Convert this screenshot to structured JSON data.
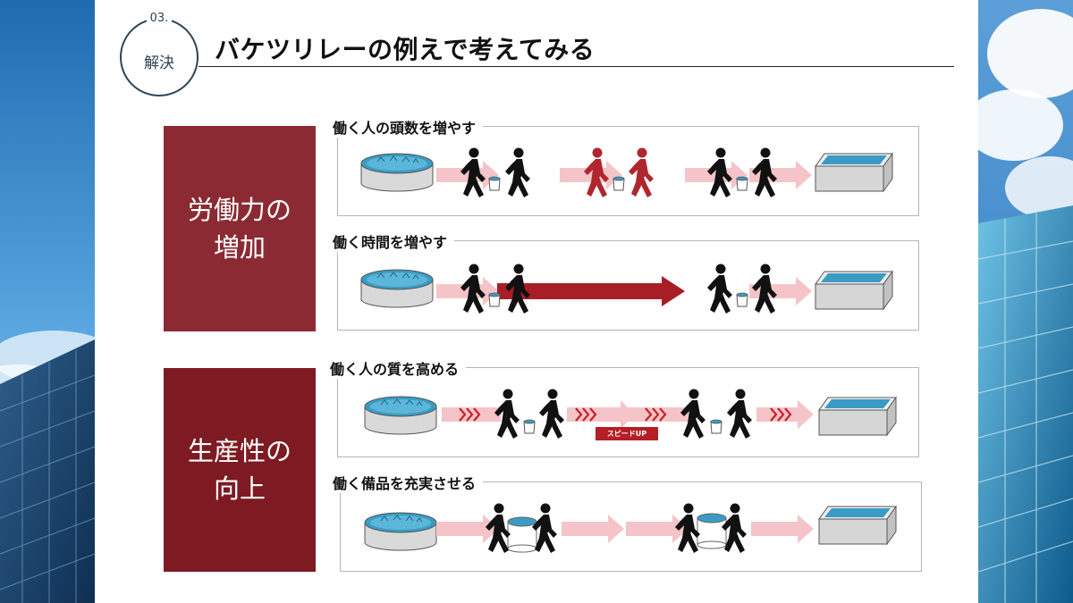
{
  "badge": {
    "number": "03.",
    "label": "解決"
  },
  "title": "バケツリレーの例えで考えてみる",
  "categories": [
    {
      "label": "労働力の\n増加"
    },
    {
      "label": "生産性の\n向上"
    }
  ],
  "rows": [
    {
      "label": "働く人の頭数を増やす"
    },
    {
      "label": "働く時間を増やす"
    },
    {
      "label": "働く人の質を高める",
      "speed_tag": "スピードUP"
    },
    {
      "label": "働く備品を充実させる"
    }
  ],
  "colors": {
    "accent_red": "#8c2a33",
    "arrow_light": "#f5c4c8",
    "arrow_dark": "#a81e26",
    "water": "#3a9cc4"
  }
}
